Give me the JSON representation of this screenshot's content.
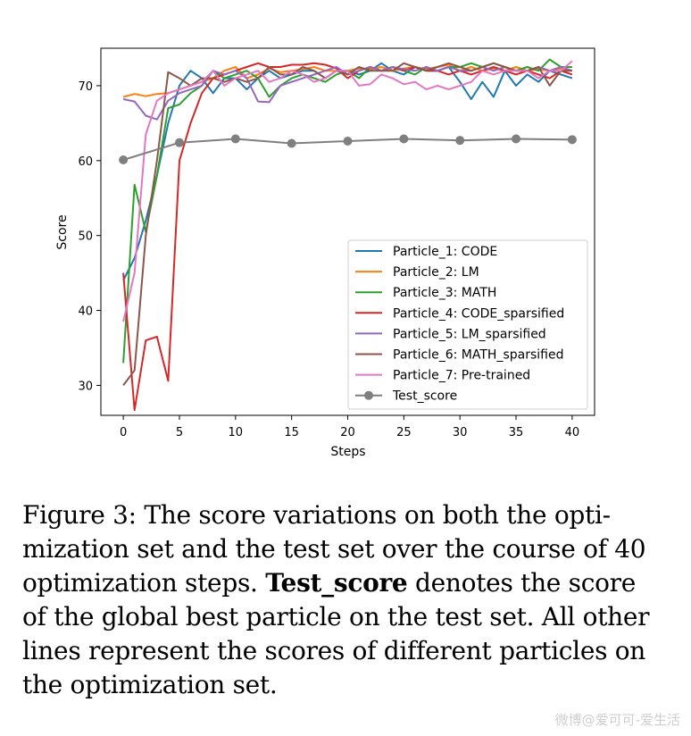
{
  "chart_data": {
    "type": "line",
    "xlabel": "Steps",
    "ylabel": "Score",
    "xlim": [
      -2,
      42
    ],
    "ylim": [
      26,
      75
    ],
    "xticks": [
      0,
      5,
      10,
      15,
      20,
      25,
      30,
      35,
      40
    ],
    "yticks": [
      30,
      40,
      50,
      60,
      70
    ],
    "grid": false,
    "legend_position": "lower-right",
    "series": [
      {
        "name": "Particle_1: CODE",
        "color": "#1f77b4",
        "marker": "none",
        "x": [
          0,
          1,
          2,
          3,
          4,
          5,
          6,
          7,
          8,
          9,
          10,
          11,
          12,
          13,
          14,
          15,
          16,
          17,
          18,
          19,
          20,
          21,
          22,
          23,
          24,
          25,
          26,
          27,
          28,
          29,
          30,
          31,
          32,
          33,
          34,
          35,
          36,
          37,
          38,
          39,
          40
        ],
        "y": [
          44,
          47,
          52,
          58,
          65,
          70,
          72,
          71,
          69,
          71,
          71,
          69.5,
          71,
          72,
          71,
          71.5,
          72,
          72,
          71,
          72,
          72,
          71.5,
          72,
          73,
          72,
          71.5,
          72.5,
          72,
          72,
          72.5,
          70.5,
          68.2,
          70.5,
          68.5,
          72,
          70,
          71.5,
          70.5,
          72,
          71.5,
          71
        ]
      },
      {
        "name": "Particle_2: LM",
        "color": "#ff7f0e",
        "marker": "none",
        "x": [
          0,
          1,
          2,
          3,
          4,
          5,
          6,
          7,
          8,
          9,
          10,
          11,
          12,
          13,
          14,
          15,
          16,
          17,
          18,
          19,
          20,
          21,
          22,
          23,
          24,
          25,
          26,
          27,
          28,
          29,
          30,
          31,
          32,
          33,
          34,
          35,
          36,
          37,
          38,
          39,
          40
        ],
        "y": [
          68.5,
          68.9,
          68.6,
          68.9,
          69,
          69.5,
          70,
          70.5,
          71,
          72,
          72.5,
          71,
          71.5,
          72.3,
          71.8,
          72,
          72.2,
          72.5,
          72,
          72,
          72,
          72.3,
          72.2,
          72.5,
          72,
          72.3,
          72.5,
          72.2,
          72.5,
          72.8,
          72,
          72.5,
          72,
          72.3,
          72,
          72.5,
          72,
          72.2,
          72,
          72.3,
          72
        ]
      },
      {
        "name": "Particle_3: MATH",
        "color": "#2ca02c",
        "marker": "none",
        "x": [
          0,
          1,
          2,
          3,
          4,
          5,
          6,
          7,
          8,
          9,
          10,
          11,
          12,
          13,
          14,
          15,
          16,
          17,
          18,
          19,
          20,
          21,
          22,
          23,
          24,
          25,
          26,
          27,
          28,
          29,
          30,
          31,
          32,
          33,
          34,
          35,
          36,
          37,
          38,
          39,
          40
        ],
        "y": [
          33,
          56.8,
          50.5,
          58,
          67,
          67.5,
          69,
          70,
          72,
          71,
          71.5,
          72,
          71,
          68.5,
          70,
          71,
          71.5,
          71,
          70.5,
          71.5,
          72,
          71,
          72.5,
          72,
          72.5,
          72,
          71.5,
          72.5,
          72,
          72.5,
          72.5,
          73,
          72.5,
          73,
          72.5,
          72,
          72.5,
          72,
          73.5,
          72.5,
          72.5
        ]
      },
      {
        "name": "Particle_4: CODE_sparsified",
        "color": "#d62728",
        "marker": "none",
        "x": [
          0,
          1,
          2,
          3,
          4,
          5,
          6,
          7,
          8,
          9,
          10,
          11,
          12,
          13,
          14,
          15,
          16,
          17,
          18,
          19,
          20,
          21,
          22,
          23,
          24,
          25,
          26,
          27,
          28,
          29,
          30,
          31,
          32,
          33,
          34,
          35,
          36,
          37,
          38,
          39,
          40
        ],
        "y": [
          45,
          26.7,
          36,
          36.5,
          30.6,
          60,
          65,
          69,
          71,
          71.5,
          72,
          72.5,
          73,
          72.5,
          72.5,
          72.8,
          72.8,
          73,
          72.8,
          72.3,
          71,
          72,
          72.5,
          72,
          72.5,
          72,
          72.5,
          72,
          72,
          71.5,
          72,
          71.5,
          72,
          72.5,
          72,
          71.5,
          72,
          71.5,
          71,
          72,
          71.5
        ]
      },
      {
        "name": "Particle_5: LM_sparsified",
        "color": "#9467bd",
        "marker": "none",
        "x": [
          0,
          1,
          2,
          3,
          4,
          5,
          6,
          7,
          8,
          9,
          10,
          11,
          12,
          13,
          14,
          15,
          16,
          17,
          18,
          19,
          20,
          21,
          22,
          23,
          24,
          25,
          26,
          27,
          28,
          29,
          30,
          31,
          32,
          33,
          34,
          35,
          36,
          37,
          38,
          39,
          40
        ],
        "y": [
          68.2,
          67.9,
          66,
          65.5,
          68,
          69,
          69.5,
          70,
          72,
          71.5,
          72,
          71,
          67.9,
          67.8,
          70,
          70.5,
          71,
          71.5,
          72,
          72.5,
          71.5,
          72,
          72.5,
          72,
          72.5,
          72.2,
          72,
          72.5,
          72,
          72.5,
          72,
          72,
          72.5,
          72,
          72.5,
          72,
          72,
          72.5,
          72,
          72.5,
          72
        ]
      },
      {
        "name": "Particle_6: MATH_sparsified",
        "color": "#8c564b",
        "marker": "none",
        "x": [
          0,
          1,
          2,
          3,
          4,
          5,
          6,
          7,
          8,
          9,
          10,
          11,
          12,
          13,
          14,
          15,
          16,
          17,
          18,
          19,
          20,
          21,
          22,
          23,
          24,
          25,
          26,
          27,
          28,
          29,
          30,
          31,
          32,
          33,
          34,
          35,
          36,
          37,
          38,
          39,
          40
        ],
        "y": [
          30,
          32,
          50,
          60,
          71.8,
          71,
          70,
          71,
          71,
          70.5,
          71,
          70.5,
          71,
          72.5,
          71.5,
          71.5,
          72.5,
          72,
          71,
          72,
          71.5,
          72.5,
          72,
          72,
          72,
          73,
          72.5,
          72,
          72.5,
          73,
          72.5,
          72,
          72.5,
          73,
          72.5,
          72,
          72,
          72.5,
          70,
          72,
          72
        ]
      },
      {
        "name": "Particle_7: Pre-trained",
        "color": "#e377c2",
        "marker": "none",
        "x": [
          0,
          1,
          2,
          3,
          4,
          5,
          6,
          7,
          8,
          9,
          10,
          11,
          12,
          13,
          14,
          15,
          16,
          17,
          18,
          19,
          20,
          21,
          22,
          23,
          24,
          25,
          26,
          27,
          28,
          29,
          30,
          31,
          32,
          33,
          34,
          35,
          36,
          37,
          38,
          39,
          40
        ],
        "y": [
          38.5,
          45,
          63.5,
          68,
          69,
          69.5,
          70,
          70.5,
          72,
          70,
          71,
          71.5,
          72,
          70.5,
          71,
          72,
          71.5,
          70.5,
          71,
          72,
          72,
          70,
          70.2,
          71.5,
          71,
          70.2,
          70.5,
          69.5,
          70,
          69.5,
          70,
          70.5,
          72,
          71.5,
          72,
          72,
          72,
          71,
          72,
          72,
          73.3
        ]
      },
      {
        "name": "Test_score",
        "color": "#7f7f7f",
        "marker": "circle",
        "x": [
          0,
          5,
          10,
          15,
          20,
          25,
          30,
          35,
          40
        ],
        "y": [
          60.1,
          62.4,
          62.9,
          62.3,
          62.6,
          62.9,
          62.7,
          62.9,
          62.8
        ]
      }
    ]
  },
  "caption": {
    "lines": [
      [
        {
          "t": "Figure 3:  The score variations on both the opti-",
          "b": false
        }
      ],
      [
        {
          "t": "mization set and the test set over the course of 40",
          "b": false
        }
      ],
      [
        {
          "t": "optimization steps. ",
          "b": false
        },
        {
          "t": "Test_score",
          "b": true
        },
        {
          "t": " denotes the score",
          "b": false
        }
      ],
      [
        {
          "t": "of the global best particle on the test set. All other",
          "b": false
        }
      ],
      [
        {
          "t": "lines represent the scores of different particles on",
          "b": false
        }
      ],
      [
        {
          "t": "the optimization set.",
          "b": false
        }
      ]
    ]
  },
  "watermark": "微博@爱可可-爱生活"
}
